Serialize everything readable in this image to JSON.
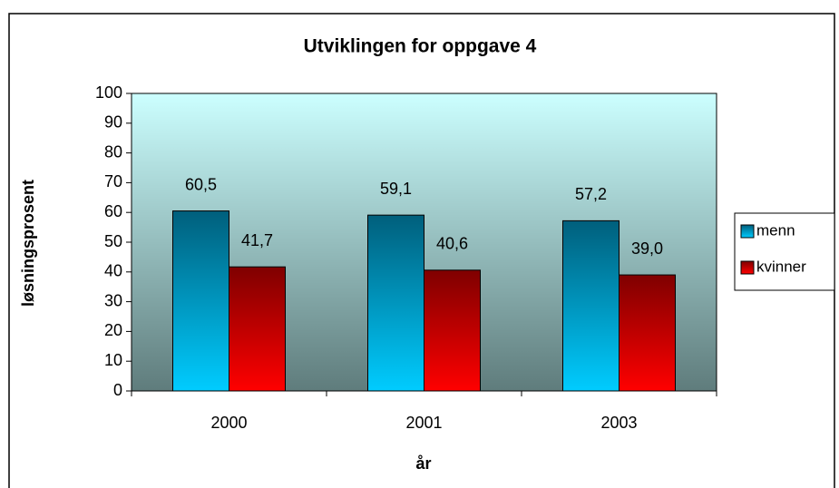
{
  "chart_data": {
    "type": "bar",
    "title": "Utviklingen for oppgave 4",
    "x_label": "år",
    "y_label": "løsningsprosent",
    "categories": [
      "2000",
      "2001",
      "2003"
    ],
    "series": [
      {
        "name": "menn",
        "color": "#00ccff",
        "values": [
          60.5,
          59.1,
          57.2
        ],
        "value_labels": [
          "60,5",
          "59,1",
          "57,2"
        ]
      },
      {
        "name": "kvinner",
        "color": "#ff0000",
        "values": [
          41.7,
          40.6,
          39.0
        ],
        "value_labels": [
          "41,7",
          "40,6",
          "39,0"
        ]
      }
    ],
    "ylim": [
      0,
      100
    ],
    "yticks": [
      0,
      10,
      20,
      30,
      40,
      50,
      60,
      70,
      80,
      90,
      100
    ],
    "legend": "right"
  }
}
